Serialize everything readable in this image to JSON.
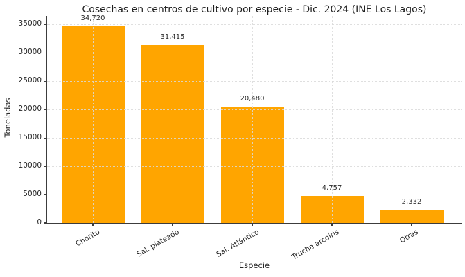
{
  "chart_data": {
    "type": "bar",
    "title": "Cosechas en centros de cultivo por especie - Dic. 2024 (INE Los Lagos)",
    "xlabel": "Especie",
    "ylabel": "Toneladas",
    "categories": [
      "Chorito",
      "Sal. plateado",
      "Sal. Atlántico",
      "Trucha arcoíris",
      "Otras"
    ],
    "values": [
      34720,
      31415,
      20480,
      4757,
      2332
    ],
    "value_labels": [
      "34,720",
      "31,415",
      "20,480",
      "4,757",
      "2,332"
    ],
    "yticks": [
      0,
      5000,
      10000,
      15000,
      20000,
      25000,
      30000,
      35000
    ],
    "ytick_labels": [
      "0",
      "5000",
      "10000",
      "15000",
      "20000",
      "25000",
      "30000",
      "35000"
    ],
    "ylim": [
      0,
      36500
    ],
    "grid": true,
    "grid_style": "dotted",
    "legend": "none",
    "colors": {
      "bar": "#ffa500",
      "text": "#262626",
      "spine": "#3c3c3c",
      "grid": "#dadada",
      "background": "#ffffff"
    }
  }
}
